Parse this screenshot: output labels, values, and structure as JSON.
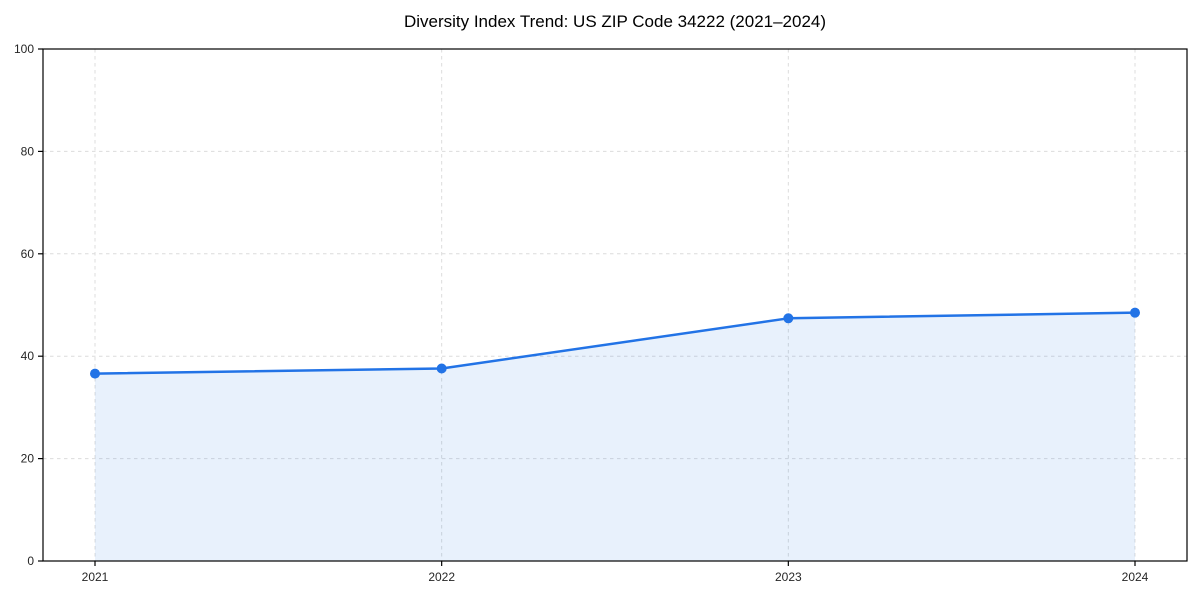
{
  "chart_data": {
    "type": "area",
    "title": "Diversity Index Trend: US ZIP Code 34222 (2021–2024)",
    "x": [
      2021,
      2022,
      2023,
      2024
    ],
    "categories": [
      "2021",
      "2022",
      "2023",
      "2024"
    ],
    "series": [
      {
        "name": "Diversity Index",
        "values": [
          36.6,
          37.6,
          47.4,
          48.5
        ]
      }
    ],
    "xlabel": "",
    "ylabel": "",
    "ylim": [
      0,
      100
    ],
    "yticks": [
      0,
      20,
      40,
      60,
      80,
      100
    ],
    "x_margin_fraction": 0.05,
    "grid": true,
    "grid_style": "dashed",
    "legend": "none",
    "colors": {
      "line": "#2273e6",
      "marker": "#2273e6",
      "fill": "#2273e6",
      "fill_opacity": 0.1,
      "grid": "#dcdcdc",
      "spine": "#000000",
      "tick": "#000000",
      "text": "#262626",
      "title": "#000000",
      "background": "#ffffff"
    }
  }
}
